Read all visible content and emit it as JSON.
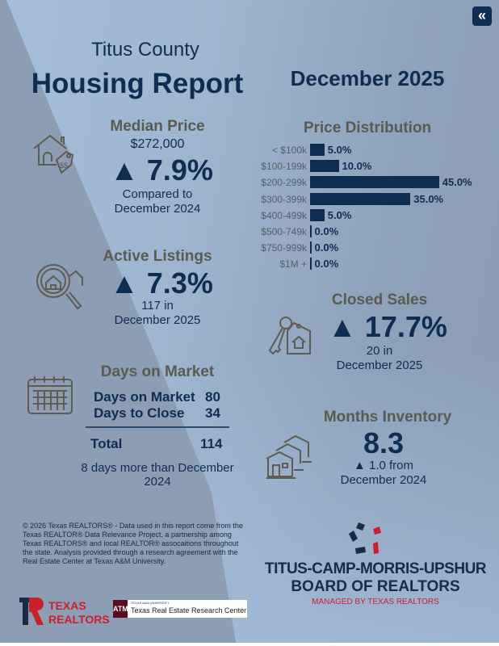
{
  "header": {
    "county": "Titus County",
    "title": "Housing Report",
    "period": "December 2025",
    "collapse_icon": "double-chevron-left-icon"
  },
  "median_price": {
    "heading": "Median Price",
    "value": "$272,000",
    "change": "▲ 7.9%",
    "note_line1": "Compared to",
    "note_line2": "December 2024",
    "icon": "house-price-tag-icon"
  },
  "active_listings": {
    "heading": "Active Listings",
    "change": "▲ 7.3%",
    "note_line1": "117 in",
    "note_line2": "December 2025",
    "icon": "magnifier-house-icon"
  },
  "days_on_market": {
    "heading": "Days on Market",
    "rows": [
      {
        "label": "Days on Market",
        "value": "80"
      },
      {
        "label": "Days to Close",
        "value": "34"
      }
    ],
    "total_label": "Total",
    "total_value": "114",
    "note": "8 days more than December 2024",
    "icon": "calendar-icon"
  },
  "price_distribution": {
    "heading": "Price Distribution",
    "chart_data": {
      "type": "bar",
      "orientation": "horizontal",
      "title": "Price Distribution",
      "categories": [
        "< $100k",
        "$100-199k",
        "$200-299k",
        "$300-399k",
        "$400-499k",
        "$500-749k",
        "$750-999k",
        "$1M +"
      ],
      "values": [
        5.0,
        10.0,
        45.0,
        35.0,
        5.0,
        0.0,
        0.0,
        0.0
      ],
      "value_labels": [
        "5.0%",
        "10.0%",
        "45.0%",
        "35.0%",
        "5.0%",
        "0.0%",
        "0.0%",
        "0.0%"
      ],
      "bar_color": "#0f2d52"
    }
  },
  "closed_sales": {
    "heading": "Closed Sales",
    "change": "▲ 17.7%",
    "note_line1": "20 in",
    "note_line2": "December 2025",
    "icon": "key-house-tag-icon"
  },
  "months_inventory": {
    "heading": "Months Inventory",
    "value": "8.3",
    "note_line1": "▲ 1.0 from",
    "note_line2": "December 2024",
    "icon": "houses-row-icon"
  },
  "footer": {
    "disclaimer": "© 2026 Texas REALTORS® - Data used in this report come from the Texas REALTOR® Data Relevance Project, a partnership among Texas REALTORS® and local REALTOR® assocaitions throughout the state. Analysis provided through a research agreement with the Real Estate Center at Texas A&M University.",
    "logo_texas_realtors": "TEXAS REALTORS",
    "logo_tamu_small": "TEXAS A&M UNIVERSITY",
    "logo_tamu": "Texas Real Estate Research Center",
    "board_line1": "TITUS-CAMP-MORRIS-UPSHUR",
    "board_line2": "BOARD OF REALTORS",
    "board_line3": "MANAGED BY TEXAS REALTORS"
  },
  "colors": {
    "navy": "#0f2d52",
    "heading_gray": "#5b5a4e",
    "red": "#c8202f"
  }
}
